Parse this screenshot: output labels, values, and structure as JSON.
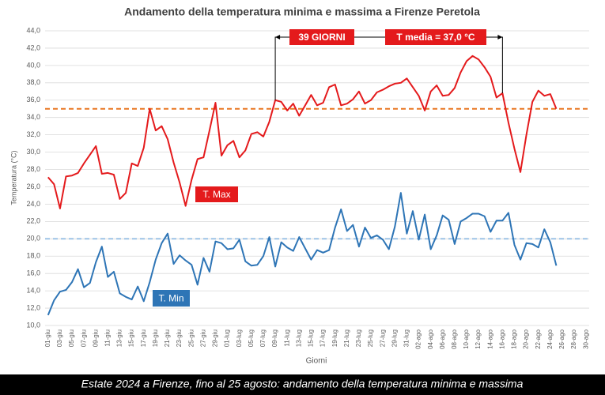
{
  "chart_data": {
    "type": "line",
    "title": "Andamento della temperatura minima e massima a Firenze Peretola",
    "ylabel": "Temperatura (°C)",
    "xlabel": "Giorni",
    "caption": "Estate 2024 a Firenze, fino al 25 agosto: andamento della temperatura minima e massima",
    "categories": [
      "01-giu",
      null,
      "03-giu",
      null,
      "05-giu",
      null,
      "07-giu",
      null,
      "09-giu",
      null,
      "11-giu",
      null,
      "13-giu",
      null,
      "15-giu",
      null,
      "17-giu",
      null,
      "19-giu",
      null,
      "21-giu",
      null,
      "23-giu",
      null,
      "25-giu",
      null,
      "27-giu",
      null,
      "29-giu",
      null,
      "01-lug",
      null,
      "03-lug",
      null,
      "05-lug",
      null,
      "07-lug",
      null,
      "09-lug",
      null,
      "11-lug",
      null,
      "13-lug",
      null,
      "15-lug",
      null,
      "17-lug",
      null,
      "19-lug",
      null,
      "21-lug",
      null,
      "23-lug",
      null,
      "25-lug",
      null,
      "27-lug",
      null,
      "29-lug",
      null,
      "31-lug",
      null,
      "02-ago",
      null,
      "04-ago",
      null,
      "06-ago",
      null,
      "08-ago",
      null,
      "10-ago",
      null,
      "12-ago",
      null,
      "14-ago",
      null,
      "16-ago",
      null,
      "18-ago",
      null,
      "20-ago",
      null,
      "22-ago",
      null,
      "24-ago",
      null,
      "26-ago",
      null,
      "28-ago",
      null,
      "30-ago"
    ],
    "series": [
      {
        "name": "T. Max",
        "color": "#e41a1c",
        "values": [
          27.1,
          26.3,
          23.5,
          27.2,
          27.3,
          27.6,
          28.7,
          29.7,
          30.7,
          27.5,
          27.6,
          27.4,
          24.6,
          25.3,
          28.7,
          28.4,
          30.5,
          35.0,
          32.5,
          33.0,
          31.5,
          28.8,
          26.5,
          23.8,
          26.8,
          29.2,
          29.4,
          32.5,
          35.7,
          29.6,
          30.8,
          31.3,
          29.4,
          30.2,
          32.1,
          32.3,
          31.8,
          33.5,
          36.0,
          35.8,
          34.8,
          35.6,
          34.2,
          35.4,
          36.6,
          35.4,
          35.7,
          37.5,
          37.8,
          35.4,
          35.6,
          36.1,
          37.0,
          35.6,
          36.0,
          36.9,
          37.2,
          37.6,
          37.9,
          38.0,
          38.5,
          37.5,
          36.5,
          34.8,
          37.0,
          37.7,
          36.5,
          36.6,
          37.4,
          39.2,
          40.5,
          41.1,
          40.7,
          39.8,
          38.7,
          36.3,
          36.8,
          33.4,
          30.4,
          27.7,
          32.0,
          35.8,
          37.1,
          36.5,
          36.7,
          35.0,
          null,
          null,
          null,
          null,
          null
        ]
      },
      {
        "name": "T. Min",
        "color": "#2e75b6",
        "values": [
          11.2,
          12.9,
          13.9,
          14.1,
          15.0,
          16.5,
          14.4,
          14.9,
          17.3,
          19.1,
          15.6,
          16.2,
          13.7,
          13.3,
          13.0,
          14.5,
          12.8,
          15.0,
          17.6,
          19.5,
          20.6,
          17.1,
          18.1,
          17.5,
          17.0,
          14.7,
          17.8,
          16.2,
          19.7,
          19.5,
          18.8,
          18.9,
          19.9,
          17.4,
          16.9,
          17.0,
          18.0,
          20.2,
          16.8,
          19.6,
          19.0,
          18.6,
          20.2,
          18.9,
          17.6,
          18.7,
          18.4,
          18.7,
          21.3,
          23.4,
          20.9,
          21.6,
          19.1,
          21.3,
          20.1,
          20.4,
          19.9,
          18.8,
          21.4,
          25.3,
          20.6,
          23.2,
          19.9,
          22.8,
          18.8,
          20.4,
          22.7,
          22.2,
          19.4,
          22.0,
          22.4,
          22.9,
          22.9,
          22.6,
          20.8,
          22.1,
          22.1,
          23.0,
          19.3,
          17.6,
          19.5,
          19.4,
          19.0,
          21.1,
          19.6,
          16.9,
          null,
          null,
          null,
          null,
          null
        ]
      }
    ],
    "reference_lines": [
      {
        "value": 35,
        "color": "#e87722"
      },
      {
        "value": 20,
        "color": "#9dc3e6"
      }
    ],
    "bracket": {
      "from": "09-lug",
      "to": "16-ago",
      "color": "#e41a1c",
      "labels": [
        "39 GIORNI",
        "T media = 37,0 °C"
      ]
    },
    "ylim": [
      10,
      44
    ],
    "yticks": [
      {
        "value": 10,
        "label": "10,0"
      },
      {
        "value": 12,
        "label": "12,0"
      },
      {
        "value": 14,
        "label": "14,0"
      },
      {
        "value": 16,
        "label": "16,0"
      },
      {
        "value": 18,
        "label": "18,0"
      },
      {
        "value": 20,
        "label": "20,0"
      },
      {
        "value": 22,
        "label": "22,0"
      },
      {
        "value": 24,
        "label": "24,0"
      },
      {
        "value": 26,
        "label": "26,0"
      },
      {
        "value": 28,
        "label": "28,0"
      },
      {
        "value": 30,
        "label": "30,0"
      },
      {
        "value": 32,
        "label": "32,0"
      },
      {
        "value": 34,
        "label": "34,0"
      },
      {
        "value": 36,
        "label": "36,0"
      },
      {
        "value": 38,
        "label": "38,0"
      },
      {
        "value": 40,
        "label": "40,0"
      },
      {
        "value": 42,
        "label": "42,0"
      },
      {
        "value": 44,
        "label": "44,0"
      }
    ],
    "grid": true
  }
}
